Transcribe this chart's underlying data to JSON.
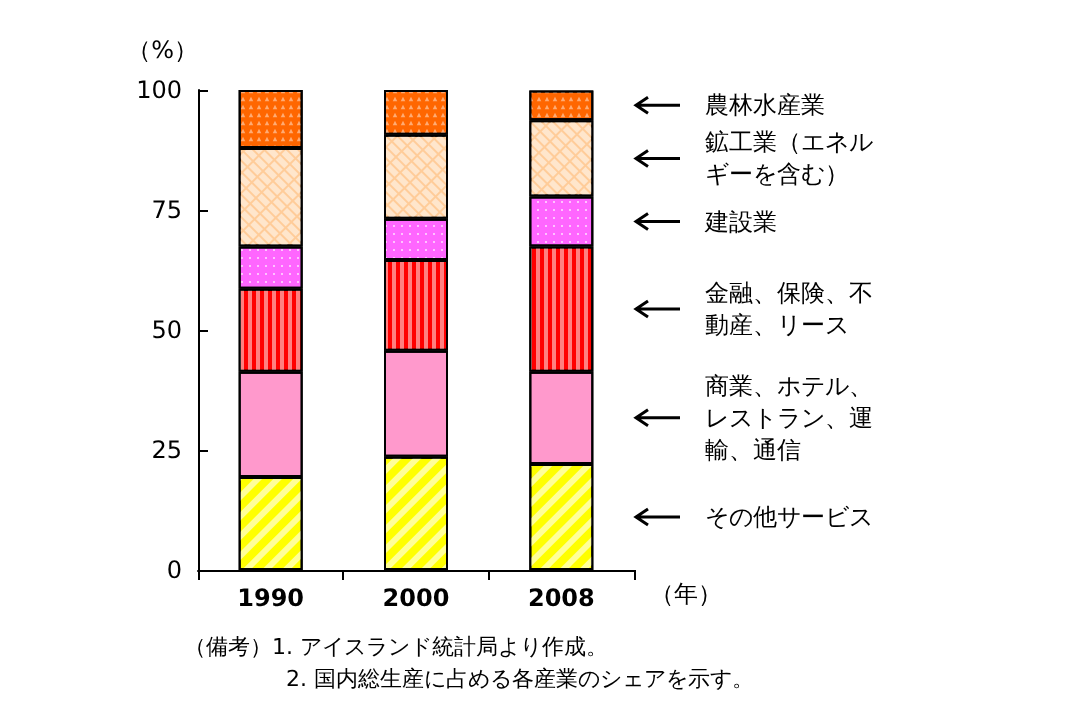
{
  "chart_data": {
    "type": "bar",
    "stacked": true,
    "categories": [
      "1990",
      "2000",
      "2008"
    ],
    "ylabel": "（%）",
    "xlabel": "（年）",
    "ylim": [
      0,
      100
    ],
    "yticks": [
      0,
      25,
      50,
      75,
      100
    ],
    "grid": false,
    "legend": "right",
    "series": [
      {
        "name": "その他サービス",
        "color": "#ffff00",
        "values": [
          19.4,
          23.6,
          22.1
        ]
      },
      {
        "name": "商業、ホテル、レストラン、運輸、通信",
        "color": "#ff99cc",
        "values": [
          21.9,
          22.1,
          19.2
        ]
      },
      {
        "name": "金融、保険、不動産、リース",
        "color": "#ff0000",
        "values": [
          17.3,
          18.9,
          26.1
        ]
      },
      {
        "name": "建設業",
        "color": "#ff66ff",
        "values": [
          8.8,
          8.6,
          10.4
        ]
      },
      {
        "name": "鉱工業（エネルギーを含む）",
        "color": "#ffcc99",
        "values": [
          20.5,
          17.5,
          15.9
        ]
      },
      {
        "name": "農林水産業",
        "color": "#ff6600",
        "values": [
          12.1,
          9.3,
          6.2
        ]
      }
    ],
    "annotations": [
      "（備考）1. アイスランド統計局より作成。",
      "2. 国内総生産に占める各産業のシェアを示す。"
    ]
  }
}
